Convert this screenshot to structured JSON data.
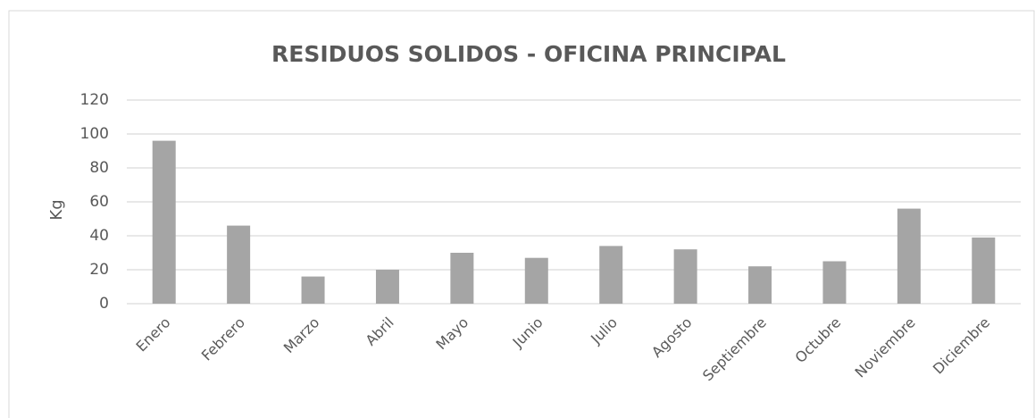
{
  "chart_data": {
    "type": "bar",
    "title": "RESIDUOS SOLIDOS - OFICINA PRINCIPAL",
    "y_label": "Kg",
    "categories": [
      "Enero",
      "Febrero",
      "Marzo",
      "Abril",
      "Mayo",
      "Junio",
      "Julio",
      "Agosto",
      "Septiembre",
      "Octubre",
      "Noviembre",
      "Diciembre"
    ],
    "values": [
      96,
      46,
      16,
      20,
      30,
      27,
      34,
      32,
      22,
      25,
      56,
      39
    ],
    "color": "#a5a5a5",
    "ylim": [
      0,
      120
    ],
    "yticks": [
      0,
      20,
      40,
      60,
      80,
      100,
      120
    ],
    "grid": true
  }
}
